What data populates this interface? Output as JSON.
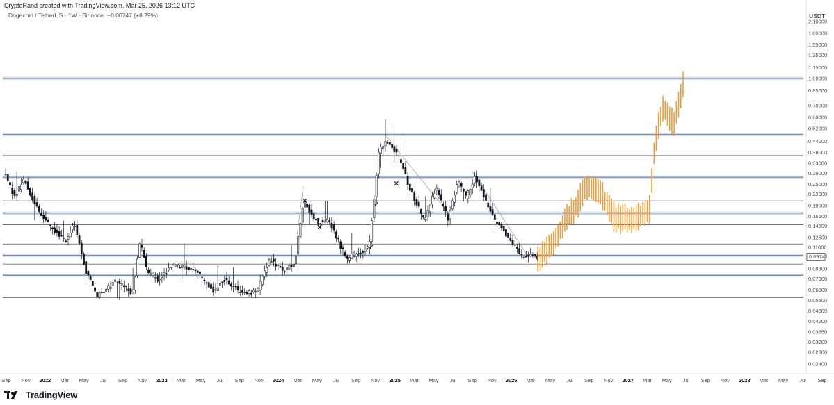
{
  "header": {
    "caption": "CryptoRand created with TradingView.com, Mar 25, 2026 13:12 UTC",
    "symbol": "Dogecoin / TetherUS · 1W · Binance",
    "change": "+0.00747 (+8.29%)"
  },
  "brand": {
    "name": "TradingView",
    "logo_icon": "tradingview-logo-icon"
  },
  "colors": {
    "candle": "#131722",
    "projection": "#f39c35",
    "level_line": "#555a66",
    "level_band": "#8fb4e3",
    "trendline": "#9a9ea8",
    "grid": "#e6e8ee"
  },
  "chart_data": {
    "type": "candlestick",
    "unit": "USDT",
    "scale": "log",
    "grid": false,
    "y_ticks": [
      "2.10000",
      "1.80000",
      "1.55000",
      "1.35000",
      "1.15000",
      "1.00000",
      "0.85000",
      "0.70000",
      "0.60000",
      "0.52000",
      "0.44000",
      "0.38000",
      "0.33000",
      "0.29000",
      "0.25000",
      "0.22000",
      "0.19000",
      "0.16500",
      "0.14500",
      "0.12500",
      "0.11000",
      "0.09800",
      "0.08300",
      "0.07300",
      "0.06300",
      "0.05500",
      "0.04800",
      "0.04200",
      "0.03650",
      "0.03200",
      "0.02800",
      "0.02400"
    ],
    "current_price_label": "0.0974",
    "x_ticks": [
      {
        "label": "Sep",
        "year": false
      },
      {
        "label": "Nov",
        "year": false
      },
      {
        "label": "2022",
        "year": true
      },
      {
        "label": "Mar",
        "year": false
      },
      {
        "label": "May",
        "year": false
      },
      {
        "label": "Jul",
        "year": false
      },
      {
        "label": "Sep",
        "year": false
      },
      {
        "label": "Nov",
        "year": false
      },
      {
        "label": "2023",
        "year": true
      },
      {
        "label": "Mar",
        "year": false
      },
      {
        "label": "May",
        "year": false
      },
      {
        "label": "Jul",
        "year": false
      },
      {
        "label": "Sep",
        "year": false
      },
      {
        "label": "Nov",
        "year": false
      },
      {
        "label": "2024",
        "year": true
      },
      {
        "label": "Mar",
        "year": false
      },
      {
        "label": "May",
        "year": false
      },
      {
        "label": "Jul",
        "year": false
      },
      {
        "label": "Sep",
        "year": false
      },
      {
        "label": "Nov",
        "year": false
      },
      {
        "label": "2025",
        "year": true
      },
      {
        "label": "Mar",
        "year": false
      },
      {
        "label": "May",
        "year": false
      },
      {
        "label": "Jul",
        "year": false
      },
      {
        "label": "Sep",
        "year": false
      },
      {
        "label": "Nov",
        "year": false
      },
      {
        "label": "2026",
        "year": true
      },
      {
        "label": "Mar",
        "year": false
      },
      {
        "label": "May",
        "year": false
      },
      {
        "label": "Jul",
        "year": false
      },
      {
        "label": "Sep",
        "year": false
      },
      {
        "label": "Nov",
        "year": false
      },
      {
        "label": "2027",
        "year": true
      },
      {
        "label": "Mar",
        "year": false
      },
      {
        "label": "May",
        "year": false
      },
      {
        "label": "Jul",
        "year": false
      },
      {
        "label": "Sep",
        "year": false
      },
      {
        "label": "Nov",
        "year": false
      },
      {
        "label": "2028",
        "year": true
      },
      {
        "label": "Mar",
        "year": false
      },
      {
        "label": "May",
        "year": false
      },
      {
        "label": "Jul",
        "year": false
      },
      {
        "label": "Sep",
        "year": false
      }
    ],
    "x_range": [
      "2021-09",
      "2028-09"
    ],
    "horizontal_levels": [
      {
        "price": 1.0,
        "style": "band"
      },
      {
        "price": 0.48,
        "style": "band"
      },
      {
        "price": 0.365,
        "style": "line"
      },
      {
        "price": 0.275,
        "style": "band"
      },
      {
        "price": 0.202,
        "style": "line"
      },
      {
        "price": 0.172,
        "style": "band"
      },
      {
        "price": 0.148,
        "style": "line"
      },
      {
        "price": 0.115,
        "style": "line"
      },
      {
        "price": 0.099,
        "style": "band"
      },
      {
        "price": 0.0885,
        "style": "line"
      },
      {
        "price": 0.0765,
        "style": "band"
      },
      {
        "price": 0.057,
        "style": "line"
      }
    ],
    "trendlines": [
      {
        "from": [
          "2024-03-01",
          0.13
        ],
        "to": [
          "2024-03-20",
          0.245
        ]
      },
      {
        "from": [
          "2024-12-05",
          0.47
        ],
        "to": [
          "2025-06-20",
          0.17
        ]
      },
      {
        "from": [
          "2025-09-01",
          0.295
        ],
        "to": [
          "2026-02-25",
          0.096
        ]
      }
    ],
    "markers": [
      {
        "symbol": "x",
        "date": "2024-03-25",
        "price": 0.195
      },
      {
        "symbol": "x",
        "date": "2024-05-10",
        "price": 0.138
      },
      {
        "symbol": "x",
        "date": "2025-01-05",
        "price": 0.245
      },
      {
        "symbol": "check",
        "date": "2024-10-20",
        "price": 0.107
      },
      {
        "symbol": "check",
        "date": "2024-11-05",
        "price": 0.188
      }
    ],
    "projection_keypoints": [
      [
        "2026-03-25",
        0.092
      ],
      [
        "2026-05-01",
        0.11
      ],
      [
        "2026-06-15",
        0.15
      ],
      [
        "2026-07-25",
        0.19
      ],
      [
        "2026-08-25",
        0.245
      ],
      [
        "2026-10-15",
        0.21
      ],
      [
        "2026-11-20",
        0.16
      ],
      [
        "2027-01-10",
        0.158
      ],
      [
        "2027-03-10",
        0.18
      ],
      [
        "2027-03-25",
        0.4
      ],
      [
        "2027-04-20",
        0.68
      ],
      [
        "2027-05-25",
        0.55
      ],
      [
        "2027-06-25",
        0.95
      ]
    ],
    "price_path_keypoints": [
      [
        "2021-08-30",
        0.29
      ],
      [
        "2021-10-01",
        0.21
      ],
      [
        "2021-10-28",
        0.27
      ],
      [
        "2021-11-20",
        0.22
      ],
      [
        "2021-12-20",
        0.17
      ],
      [
        "2022-01-25",
        0.14
      ],
      [
        "2022-03-10",
        0.12
      ],
      [
        "2022-04-05",
        0.15
      ],
      [
        "2022-05-12",
        0.08
      ],
      [
        "2022-06-18",
        0.058
      ],
      [
        "2022-08-15",
        0.072
      ],
      [
        "2022-10-05",
        0.06
      ],
      [
        "2022-10-29",
        0.12
      ],
      [
        "2022-11-20",
        0.08
      ],
      [
        "2022-12-25",
        0.072
      ],
      [
        "2023-02-10",
        0.088
      ],
      [
        "2023-04-20",
        0.082
      ],
      [
        "2023-06-15",
        0.062
      ],
      [
        "2023-07-20",
        0.072
      ],
      [
        "2023-09-10",
        0.061
      ],
      [
        "2023-10-30",
        0.062
      ],
      [
        "2023-12-10",
        0.095
      ],
      [
        "2024-01-20",
        0.08
      ],
      [
        "2024-02-25",
        0.09
      ],
      [
        "2024-03-25",
        0.2
      ],
      [
        "2024-05-10",
        0.15
      ],
      [
        "2024-06-10",
        0.16
      ],
      [
        "2024-08-05",
        0.095
      ],
      [
        "2024-10-15",
        0.11
      ],
      [
        "2024-11-15",
        0.38
      ],
      [
        "2024-12-08",
        0.45
      ],
      [
        "2025-01-20",
        0.35
      ],
      [
        "2025-02-15",
        0.25
      ],
      [
        "2025-04-07",
        0.155
      ],
      [
        "2025-05-12",
        0.24
      ],
      [
        "2025-06-20",
        0.16
      ],
      [
        "2025-07-21",
        0.26
      ],
      [
        "2025-08-15",
        0.21
      ],
      [
        "2025-09-12",
        0.28
      ],
      [
        "2025-11-10",
        0.16
      ],
      [
        "2025-12-20",
        0.13
      ],
      [
        "2026-02-05",
        0.098
      ],
      [
        "2026-03-25",
        0.0974
      ]
    ]
  }
}
